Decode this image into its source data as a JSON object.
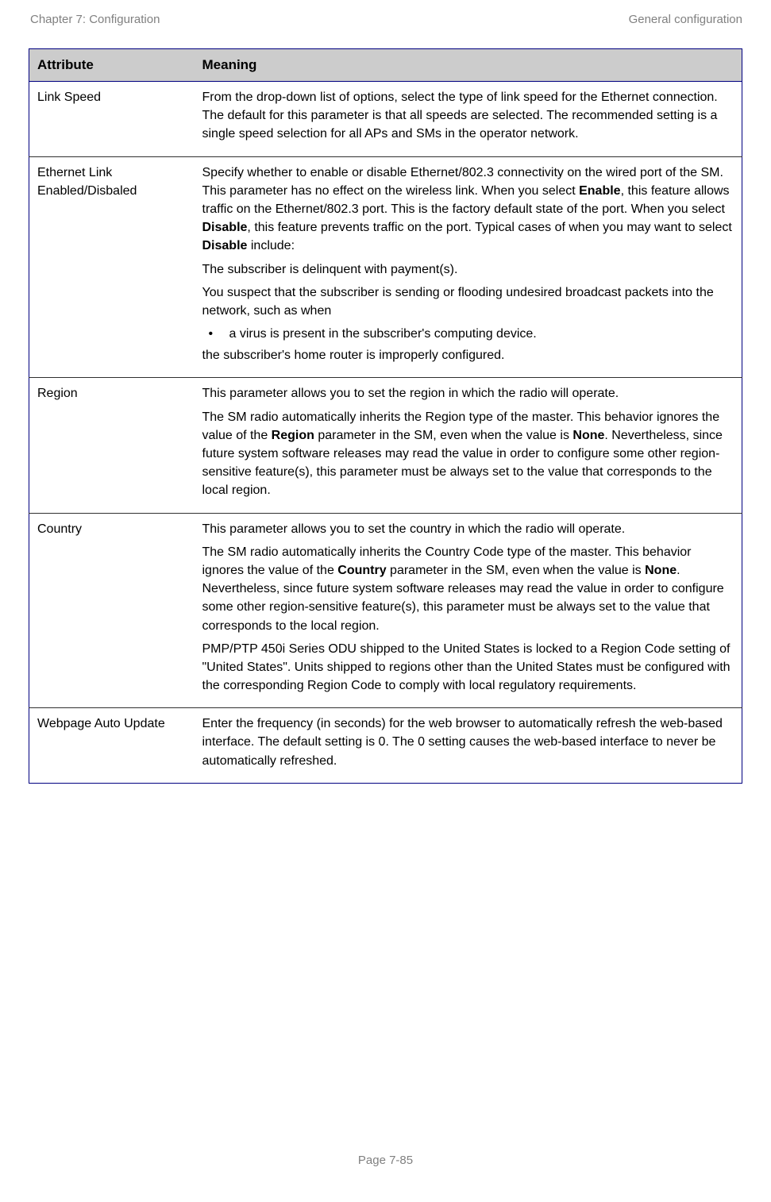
{
  "header": {
    "left": "Chapter 7:  Configuration",
    "right": "General configuration"
  },
  "table": {
    "columns": {
      "attribute": "Attribute",
      "meaning": "Meaning"
    },
    "header_bg": "#cccccc",
    "border_color": "#000080",
    "rows": [
      {
        "attribute": "Link Speed",
        "meaning_plain": "From the drop-down list of options, select the type of link speed for the Ethernet connection. The default for this parameter is that all speeds are selected. The recommended setting is a single speed selection for all APs and SMs in the operator network."
      },
      {
        "attribute": "Ethernet Link Enabled/Disbaled",
        "meaning_p1_pre": "Specify whether to enable or disable Ethernet/802.3 connectivity on the wired port of the SM. This parameter has no effect on the wireless link. When you select ",
        "meaning_p1_b1": "Enable",
        "meaning_p1_mid1": ", this feature allows traffic on the Ethernet/802.3 port. This is the factory default state of the port. When you select ",
        "meaning_p1_b2": "Disable",
        "meaning_p1_mid2": ", this feature prevents traffic on the port. Typical cases of when you may want to select ",
        "meaning_p1_b3": "Disable",
        "meaning_p1_post": " include:",
        "meaning_p2": "The subscriber is delinquent with payment(s).",
        "meaning_p3": "You suspect that the subscriber is sending or flooding undesired broadcast packets into the network, such as when",
        "meaning_bullet": "a virus is present in the subscriber's computing device.",
        "meaning_p4": "the subscriber's home router is improperly configured."
      },
      {
        "attribute": "Region",
        "meaning_p1": "This parameter allows you to set the region in which the radio will operate.",
        "meaning_p2_pre": "The SM radio automatically inherits the Region type of the master. This behavior ignores the value of the ",
        "meaning_p2_b1": "Region",
        "meaning_p2_mid": " parameter in the SM, even when the value is ",
        "meaning_p2_b2": "None",
        "meaning_p2_post": ". Nevertheless, since future system software releases may read the value in order to configure some other region-sensitive feature(s), this parameter must be always set to the value that corresponds to the local region."
      },
      {
        "attribute": "Country",
        "meaning_p1": "This parameter allows you to set the country in which the radio will operate.",
        "meaning_p2_pre": "The SM radio automatically inherits the Country Code type of the master. This behavior ignores the value of the ",
        "meaning_p2_b1": "Country",
        "meaning_p2_mid": " parameter in the SM, even when the value is ",
        "meaning_p2_b2": "None",
        "meaning_p2_post": ". Nevertheless, since future system software releases may read the value in order to configure some other region-sensitive feature(s), this parameter must be always set to the value that corresponds to the local region.",
        "meaning_p3": "PMP/PTP 450i Series ODU shipped to the United States is locked to a Region Code setting of \"United States\". Units shipped to regions other than the United States must be configured with the corresponding Region Code to comply with local regulatory requirements."
      },
      {
        "attribute": "Webpage Auto Update",
        "meaning_plain": "Enter the frequency (in seconds) for the web browser to automatically refresh the web-based interface. The default setting is 0. The 0 setting causes the web-based interface to never be automatically refreshed."
      }
    ]
  },
  "footer": "Page 7-85",
  "colors": {
    "header_text": "#808080",
    "body_text": "#000000",
    "border": "#000080",
    "th_bg": "#cccccc"
  },
  "typography": {
    "header_fontsize": 15,
    "th_fontsize": 17,
    "td_fontsize": 16,
    "footer_fontsize": 15
  }
}
